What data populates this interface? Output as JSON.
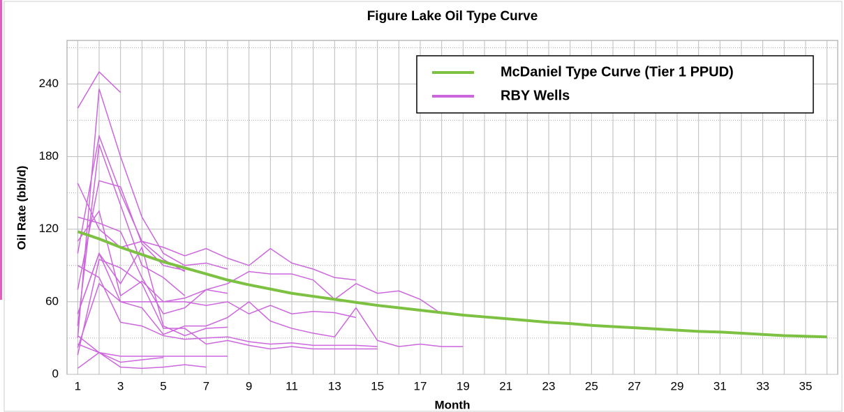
{
  "chart_data": {
    "type": "line",
    "title": "Figure Lake Oil Type Curve",
    "x_label": "Month",
    "y_label": "Oil Rate (bbl/d)",
    "xlim": [
      0.5,
      36.5
    ],
    "ylim": [
      0,
      276
    ],
    "xticks": [
      1,
      3,
      5,
      7,
      9,
      11,
      13,
      15,
      17,
      19,
      21,
      23,
      25,
      27,
      29,
      31,
      33,
      35
    ],
    "x_minor_grid": [
      2,
      4,
      6,
      8,
      10,
      12,
      14,
      16,
      18,
      20,
      22,
      24,
      26,
      28,
      30,
      32,
      34,
      36
    ],
    "yticks": [
      0,
      60,
      120,
      180,
      240
    ],
    "y_minor_grid": [
      30,
      90,
      150,
      210,
      270
    ],
    "grid": true,
    "legend": "upper right",
    "series": [
      {
        "name": "McDaniel Type Curve (Tier  1 PPUD)",
        "color": "#7dc142",
        "values": [
          118,
          112,
          105,
          99,
          93,
          88,
          83,
          78,
          74,
          70.5,
          67,
          64.5,
          62,
          59.5,
          57,
          55,
          53,
          51,
          49,
          47.5,
          46,
          44.5,
          43,
          42,
          40.5,
          39.5,
          38.5,
          37.5,
          36.5,
          35.5,
          35,
          34,
          33,
          32,
          31.5,
          31
        ]
      },
      {
        "name": "RBY Wells",
        "color": "#cc66dd",
        "lines": [
          [
            220,
            250,
            233
          ],
          [
            30,
            236,
            180,
            130,
            100,
            90,
            92,
            87
          ],
          [
            100,
            197,
            150,
            110,
            105,
            98,
            104,
            96,
            90,
            104,
            92,
            87,
            80,
            78
          ],
          [
            40,
            190,
            140,
            90,
            80,
            65
          ],
          [
            158,
            120,
            105,
            110,
            95,
            85
          ],
          [
            70,
            160,
            155,
            108,
            90,
            86
          ],
          [
            130,
            125,
            118,
            80,
            50,
            55,
            70,
            75,
            85,
            83,
            83,
            78,
            62,
            75,
            67,
            69,
            62,
            50
          ],
          [
            50,
            100,
            60,
            60,
            60,
            60,
            57,
            60,
            50,
            57,
            50,
            52,
            51,
            47
          ],
          [
            22,
            75,
            60,
            55,
            33,
            40,
            40,
            47,
            60,
            44,
            38,
            34,
            31,
            55,
            28,
            23,
            25,
            23,
            23
          ],
          [
            90,
            80,
            43,
            40,
            32,
            29,
            30,
            31,
            27,
            25,
            26,
            24,
            24,
            24,
            23
          ],
          [
            110,
            135,
            65,
            77,
            60,
            63,
            70,
            67
          ],
          [
            32,
            18,
            15,
            15,
            15,
            15,
            15,
            15
          ],
          [
            5,
            18,
            10,
            12,
            14
          ],
          [
            25,
            18,
            6,
            5,
            6,
            8,
            6
          ],
          [
            16,
            95,
            88,
            75,
            38,
            38,
            25,
            28,
            24,
            21,
            23,
            21,
            21,
            21,
            21
          ],
          [
            50,
            100,
            75,
            105,
            40,
            32,
            38,
            39
          ]
        ]
      }
    ]
  }
}
